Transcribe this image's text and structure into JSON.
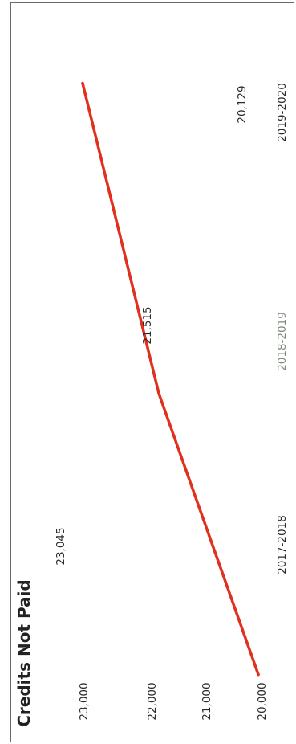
{
  "chart_data": {
    "type": "line",
    "title": "Credits Not Paid",
    "xlabel": "",
    "ylabel": "",
    "categories": [
      "2017-2018",
      "2018-2019",
      "2019-2020"
    ],
    "series": [
      {
        "values": [
          23045,
          21515,
          20129
        ],
        "data_labels": [
          "23,045",
          "21,515",
          "20,129"
        ],
        "color": "#e0301e"
      }
    ],
    "y_ticks": [
      20000,
      21000,
      22000,
      23000
    ],
    "y_tick_labels": [
      "20,000",
      "21,000",
      "22,000",
      "23,000"
    ],
    "ylim": [
      20000,
      23000
    ],
    "grid": false,
    "legend": "none",
    "orientation": "rotated-90-ccw"
  }
}
